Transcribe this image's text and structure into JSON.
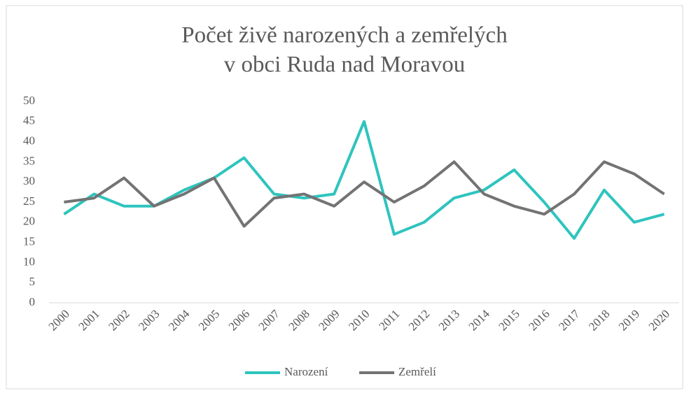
{
  "chart_data": {
    "type": "line",
    "title": [
      "Počet živě narozených  a zemřelých",
      "v obci Ruda nad Moravou"
    ],
    "categories": [
      "2000",
      "2001",
      "2002",
      "2003",
      "2004",
      "2005",
      "2006",
      "2007",
      "2008",
      "2009",
      "2010",
      "2011",
      "2012",
      "2013",
      "2014",
      "2015",
      "2016",
      "2017",
      "2018",
      "2019",
      "2020"
    ],
    "series": [
      {
        "name": "Narození",
        "color": "#2ec4be",
        "values": [
          22,
          27,
          24,
          24,
          28,
          31,
          36,
          27,
          26,
          27,
          45,
          17,
          20,
          26,
          28,
          33,
          25,
          16,
          28,
          20,
          22
        ]
      },
      {
        "name": "Zemřelí",
        "color": "#737373",
        "values": [
          25,
          26,
          31,
          24,
          27,
          31,
          19,
          26,
          27,
          24,
          30,
          25,
          29,
          35,
          27,
          24,
          22,
          27,
          35,
          32,
          27
        ]
      }
    ],
    "ylim": [
      0,
      50
    ],
    "yticks": [
      0,
      5,
      10,
      15,
      20,
      25,
      30,
      35,
      40,
      45,
      50
    ],
    "grid": false,
    "legend": "bottom"
  }
}
